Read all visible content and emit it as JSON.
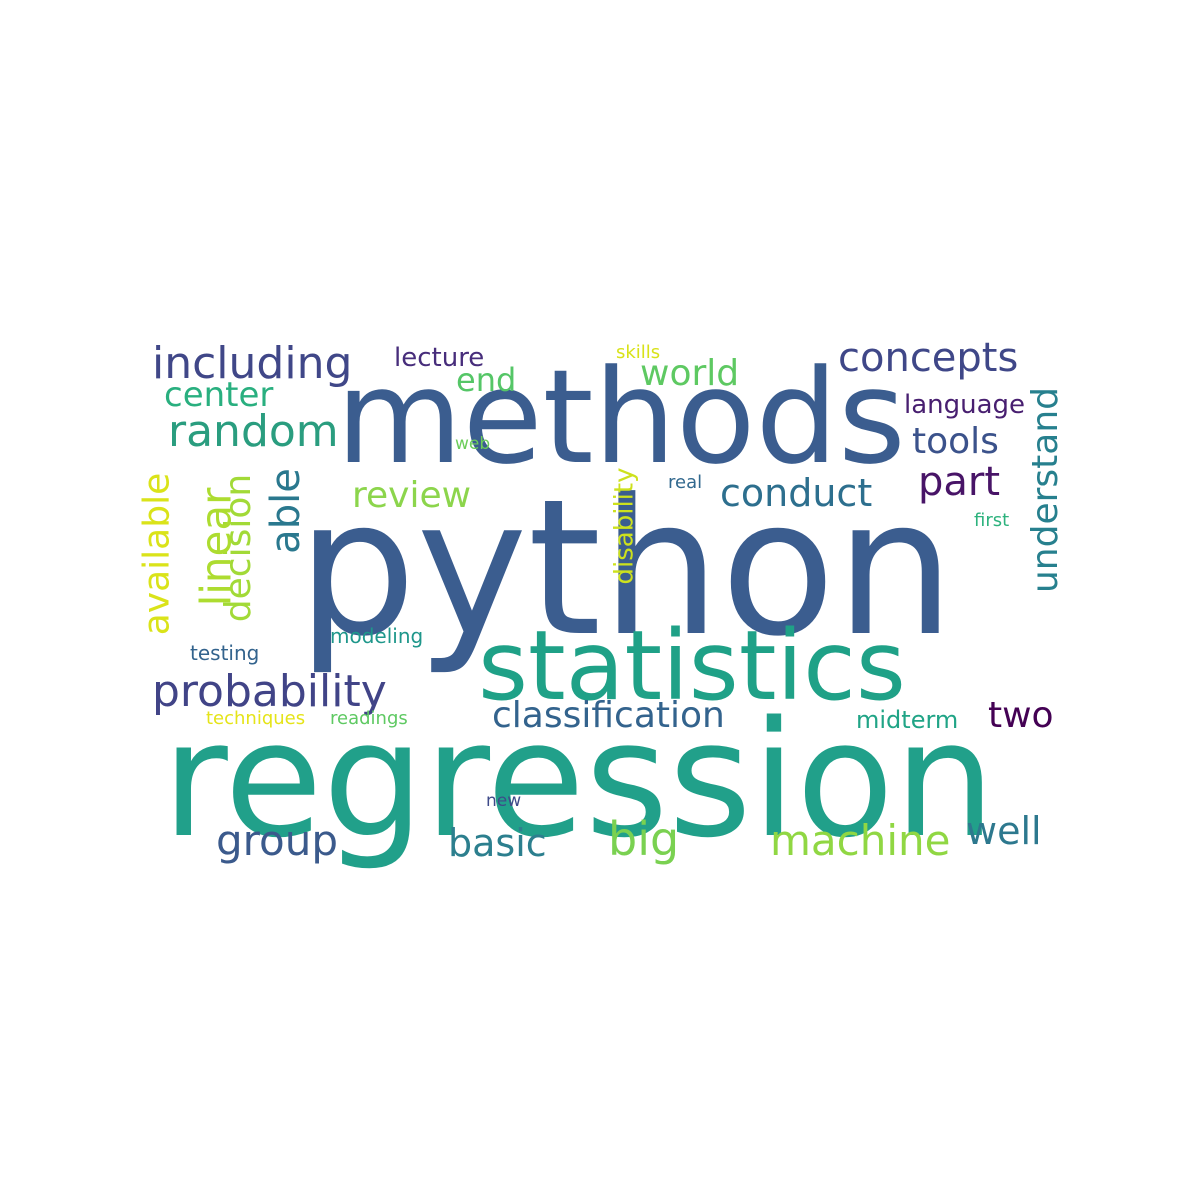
{
  "cloud": {
    "words": [
      {
        "text": "python",
        "color": "#3b5d8f"
      },
      {
        "text": "regression",
        "color": "#21a08a"
      },
      {
        "text": "methods",
        "color": "#3b5d8f"
      },
      {
        "text": "statistics",
        "color": "#1fa187"
      },
      {
        "text": "probability",
        "color": "#414487"
      },
      {
        "text": "including",
        "color": "#404788"
      },
      {
        "text": "concepts",
        "color": "#3f4788"
      },
      {
        "text": "random",
        "color": "#2a9d7f"
      },
      {
        "text": "classification",
        "color": "#33638d"
      },
      {
        "text": "machine",
        "color": "#90d743"
      },
      {
        "text": "group",
        "color": "#3b5a8c"
      },
      {
        "text": "basic",
        "color": "#2c7f8e"
      },
      {
        "text": "big",
        "color": "#7ad151"
      },
      {
        "text": "well",
        "color": "#2d788e"
      },
      {
        "text": "two",
        "color": "#440154"
      },
      {
        "text": "conduct",
        "color": "#2d6f8e"
      },
      {
        "text": "review",
        "color": "#8cd54c"
      },
      {
        "text": "world",
        "color": "#5ec962"
      },
      {
        "text": "part",
        "color": "#481467"
      },
      {
        "text": "tools",
        "color": "#3b528b"
      },
      {
        "text": "end",
        "color": "#55c667"
      },
      {
        "text": "center",
        "color": "#29af7f"
      },
      {
        "text": "lecture",
        "color": "#472d7b"
      },
      {
        "text": "language",
        "color": "#481f70"
      },
      {
        "text": "understand",
        "color": "#27808e"
      },
      {
        "text": "able",
        "color": "#2a788e"
      },
      {
        "text": "decision",
        "color": "#a2da37"
      },
      {
        "text": "linear",
        "color": "#addc30"
      },
      {
        "text": "available",
        "color": "#dae319"
      },
      {
        "text": "disability",
        "color": "#cde11d"
      },
      {
        "text": "midterm",
        "color": "#20a486"
      },
      {
        "text": "modeling",
        "color": "#1f978b"
      },
      {
        "text": "testing",
        "color": "#33638d"
      },
      {
        "text": "techniques",
        "color": "#e5e419"
      },
      {
        "text": "readings",
        "color": "#5ec962"
      },
      {
        "text": "skills",
        "color": "#d8e219"
      },
      {
        "text": "web",
        "color": "#6ccd5a"
      },
      {
        "text": "real",
        "color": "#31688e"
      },
      {
        "text": "first",
        "color": "#2db27d"
      },
      {
        "text": "new",
        "color": "#3e4a89"
      }
    ]
  }
}
